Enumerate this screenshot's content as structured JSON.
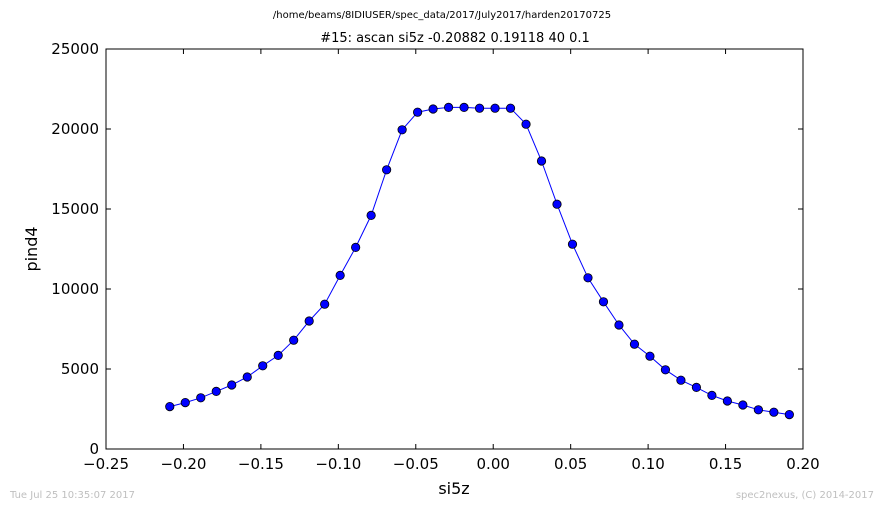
{
  "chart_data": {
    "type": "line",
    "suptitle": "/home/beams/8IDIUSER/spec_data/2017/July2017/harden20170725",
    "title": "#15: ascan  si5z -0.20882 0.19118  40 0.1",
    "xlabel": "si5z",
    "ylabel": "pind4",
    "xlim": [
      -0.25,
      0.2
    ],
    "ylim": [
      0,
      25000
    ],
    "x_ticks": [
      "−0.25",
      "−0.20",
      "−0.15",
      "−0.10",
      "−0.05",
      "0.00",
      "0.05",
      "0.10",
      "0.15",
      "0.20"
    ],
    "y_ticks": [
      "0",
      "5000",
      "10000",
      "15000",
      "20000",
      "25000"
    ],
    "grid": false,
    "series": [
      {
        "color": "#0000ff",
        "marker": "circle",
        "x": [
          -0.20882,
          -0.19882,
          -0.18882,
          -0.17882,
          -0.16882,
          -0.15882,
          -0.14882,
          -0.13882,
          -0.12882,
          -0.11882,
          -0.10882,
          -0.09882,
          -0.08882,
          -0.07882,
          -0.06882,
          -0.05882,
          -0.04882,
          -0.03882,
          -0.02882,
          -0.01882,
          -0.00882,
          0.00118,
          0.01118,
          0.02118,
          0.03118,
          0.04118,
          0.05118,
          0.06118,
          0.07118,
          0.08118,
          0.09118,
          0.10118,
          0.11118,
          0.12118,
          0.13118,
          0.14118,
          0.15118,
          0.16118,
          0.17118,
          0.18118,
          0.19118
        ],
        "y": [
          2650,
          2900,
          3200,
          3600,
          4000,
          4500,
          5200,
          5850,
          6800,
          8000,
          9050,
          10850,
          12600,
          14600,
          17450,
          19950,
          21050,
          21250,
          21350,
          21350,
          21300,
          21300,
          21300,
          20300,
          18000,
          15300,
          12800,
          10700,
          9200,
          7750,
          6550,
          5800,
          4950,
          4300,
          3850,
          3350,
          3000,
          2750,
          2450,
          2300,
          2150
        ]
      }
    ]
  },
  "footer": {
    "timestamp": "Tue Jul 25 10:35:07 2017",
    "credit": "spec2nexus, (C) 2014-2017"
  }
}
